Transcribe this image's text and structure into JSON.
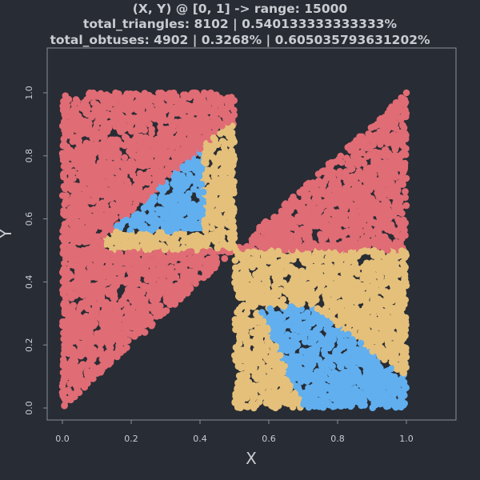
{
  "chart_data": {
    "type": "scatter",
    "title_lines": [
      "(X, Y) @ [0, 1] -> range: 15000",
      "total_triangles: 8102 | 0.540133333333333%",
      "total_obtuses: 4902 | 0.3268% | 0.605035793631202%"
    ],
    "xlabel": "X",
    "ylabel": "Y",
    "xlim": [
      -0.05,
      1.15
    ],
    "ylim": [
      -0.05,
      1.15
    ],
    "xticks": [
      "0.0",
      "0.2",
      "0.4",
      "0.6",
      "0.8",
      "1.0"
    ],
    "yticks": [
      "0.0",
      "0.2",
      "0.4",
      "0.6",
      "0.8",
      "1.0"
    ],
    "grid": false,
    "point_count": 15000,
    "colors": {
      "background": "#282c34",
      "red": "#e06c75",
      "yellow": "#e5c07b",
      "blue": "#61afef"
    },
    "series": [
      {
        "color_key": "red"
      },
      {
        "color_key": "yellow"
      },
      {
        "color_key": "blue"
      }
    ]
  }
}
